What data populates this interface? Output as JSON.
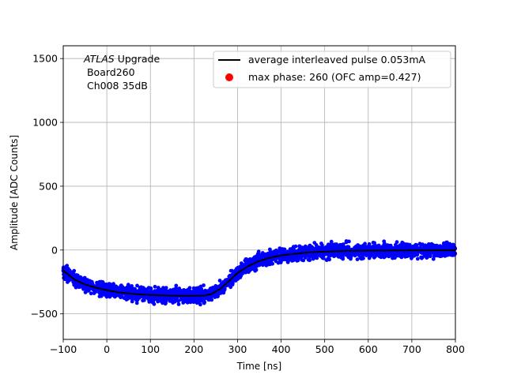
{
  "chart_data": {
    "type": "scatter",
    "xlabel": "Time [ns]",
    "ylabel": "Amplitude [ADC Counts]",
    "xlim": [
      -100,
      800
    ],
    "ylim": [
      -700,
      1600
    ],
    "xticks": [
      -100,
      0,
      100,
      200,
      300,
      400,
      500,
      600,
      700,
      800
    ],
    "yticks": [
      -500,
      0,
      500,
      1000,
      1500
    ],
    "grid": true,
    "legend_position": "upper-right",
    "annotation": {
      "italic": "ATLAS",
      "rest": " Upgrade",
      "line2": " Board260",
      "line3": " Ch008 35dB"
    },
    "series": [
      {
        "name": "average interleaved pulse 0.053mA",
        "kind": "line",
        "color": "#000000",
        "x": [
          -100,
          -75,
          -50,
          -25,
          0,
          25,
          50,
          75,
          100,
          125,
          150,
          175,
          200,
          225,
          240,
          260,
          280,
          300,
          325,
          350,
          375,
          400,
          450,
          500,
          550,
          600,
          650,
          700,
          750,
          800
        ],
        "y": [
          -160,
          -230,
          -270,
          -295,
          -315,
          -330,
          -340,
          -347,
          -352,
          -355,
          -357,
          -358,
          -358,
          -356,
          -345,
          -305,
          -245,
          -180,
          -125,
          -85,
          -60,
          -42,
          -22,
          -12,
          -7,
          -5,
          -4,
          -3,
          -2,
          -2
        ]
      },
      {
        "name": "samples",
        "kind": "scatter",
        "color": "#0000ff",
        "spread": 70
      },
      {
        "name": "max phase: 260 (OFC amp=0.427)",
        "kind": "marker",
        "color": "#ff0000"
      }
    ]
  }
}
